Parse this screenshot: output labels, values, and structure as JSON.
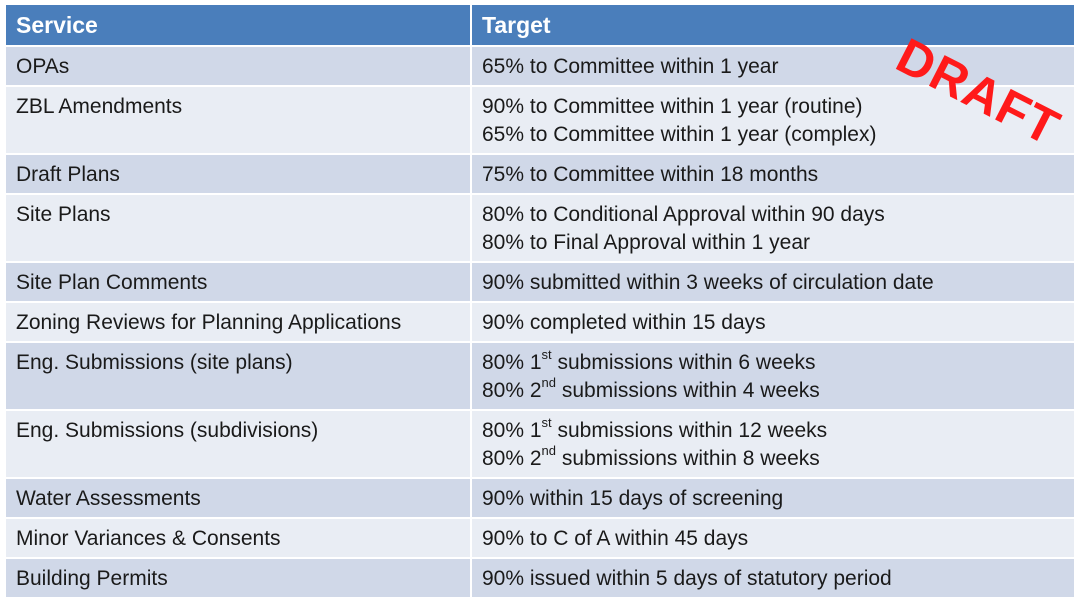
{
  "header": {
    "service": "Service",
    "target": "Target"
  },
  "rows": [
    {
      "service": "OPAs",
      "target": [
        "65% to Committee within 1 year"
      ]
    },
    {
      "service": "ZBL Amendments",
      "target": [
        "90% to Committee within 1 year (routine)",
        "65% to Committee within 1 year (complex)"
      ]
    },
    {
      "service": "Draft Plans",
      "target": [
        "75% to Committee within 18 months"
      ]
    },
    {
      "service": "Site Plans",
      "target": [
        "80% to Conditional Approval within 90 days",
        "80% to Final Approval within 1 year"
      ]
    },
    {
      "service": "Site Plan Comments",
      "target": [
        "90% submitted within 3 weeks of circulation date"
      ]
    },
    {
      "service": "Zoning Reviews for Planning Applications",
      "target": [
        "90% completed within 15 days"
      ]
    },
    {
      "service": "Eng. Submissions (site plans)",
      "target": [
        {
          "pre": "80% 1",
          "sup": "st",
          "post": " submissions within 6 weeks"
        },
        {
          "pre": "80% 2",
          "sup": "nd",
          "post": " submissions within 4 weeks"
        }
      ]
    },
    {
      "service": "Eng. Submissions (subdivisions)",
      "target": [
        {
          "pre": "80% 1",
          "sup": "st",
          "post": " submissions within 12 weeks"
        },
        {
          "pre": "80% 2",
          "sup": "nd",
          "post": " submissions within 8 weeks"
        }
      ]
    },
    {
      "service": "Water Assessments",
      "target": [
        "90% within 15 days of screening"
      ]
    },
    {
      "service": "Minor Variances & Consents",
      "target": [
        "90% to C of A within 45 days"
      ]
    },
    {
      "service": "Building Permits",
      "target": [
        "90% issued within 5 days of statutory period"
      ]
    }
  ],
  "stamp": "DRAFT",
  "colors": {
    "header_bg": "#4a7ebb",
    "row_dark": "#d0d8e8",
    "row_light": "#e9edf4",
    "stamp": "#ff1a1a"
  }
}
